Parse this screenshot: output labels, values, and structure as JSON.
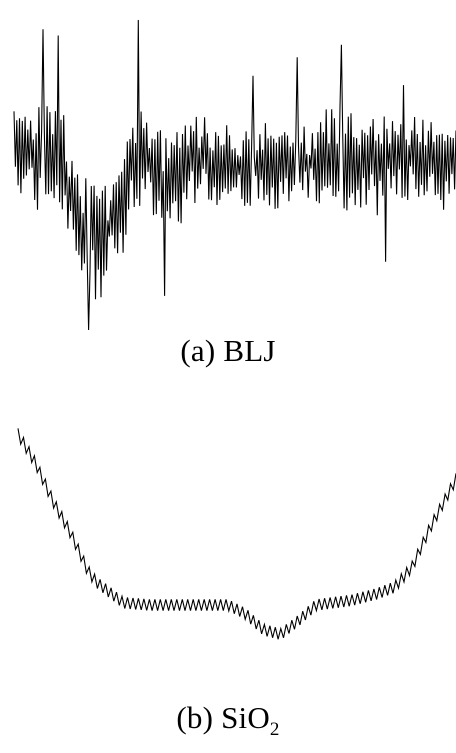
{
  "colors": {
    "background": "#ffffff",
    "trace": "#000000"
  },
  "chart_data": [
    {
      "type": "line",
      "caption_prefix": "(a)",
      "caption_label": "BLJ",
      "xlabel": "",
      "ylabel": "",
      "axes_visible": false,
      "grid": false,
      "x_range": [
        0,
        100
      ],
      "ylim": [
        0,
        100
      ],
      "series": [
        {
          "envelope": [
            {
              "x": 0,
              "y": 60
            },
            {
              "x": 4,
              "y": 55
            },
            {
              "x": 8,
              "y": 58
            },
            {
              "x": 12,
              "y": 48
            },
            {
              "x": 16,
              "y": 30
            },
            {
              "x": 20,
              "y": 30
            },
            {
              "x": 24,
              "y": 43
            },
            {
              "x": 28,
              "y": 56
            },
            {
              "x": 32,
              "y": 52
            },
            {
              "x": 36,
              "y": 46
            },
            {
              "x": 40,
              "y": 55
            },
            {
              "x": 50,
              "y": 53
            },
            {
              "x": 60,
              "y": 53
            },
            {
              "x": 70,
              "y": 55
            },
            {
              "x": 80,
              "y": 54
            },
            {
              "x": 90,
              "y": 55
            },
            {
              "x": 100,
              "y": 54
            }
          ],
          "amplitude": [
            {
              "x": 0,
              "y": 14
            },
            {
              "x": 10,
              "y": 17
            },
            {
              "x": 20,
              "y": 18
            },
            {
              "x": 30,
              "y": 16
            },
            {
              "x": 40,
              "y": 13
            },
            {
              "x": 60,
              "y": 12
            },
            {
              "x": 80,
              "y": 15
            },
            {
              "x": 100,
              "y": 12
            }
          ],
          "points_count": 320,
          "spikes": [
            {
              "x": 6.5,
              "y": 97
            },
            {
              "x": 10,
              "y": 95
            },
            {
              "x": 17,
              "y": 0
            },
            {
              "x": 28,
              "y": 100
            },
            {
              "x": 34,
              "y": 11
            },
            {
              "x": 54,
              "y": 82
            },
            {
              "x": 64,
              "y": 88
            },
            {
              "x": 74,
              "y": 92
            },
            {
              "x": 84,
              "y": 22
            },
            {
              "x": 88,
              "y": 79
            }
          ]
        }
      ]
    },
    {
      "type": "line",
      "caption_prefix": "(b)",
      "caption_label": "SiO",
      "caption_subscript": "2",
      "xlabel": "",
      "ylabel": "",
      "axes_visible": false,
      "grid": false,
      "x_range": [
        0,
        100
      ],
      "ylim": [
        0,
        100
      ],
      "series": [
        {
          "envelope": [
            {
              "x": 0,
              "y": 96
            },
            {
              "x": 4,
              "y": 83
            },
            {
              "x": 8,
              "y": 66
            },
            {
              "x": 12,
              "y": 52
            },
            {
              "x": 16,
              "y": 35
            },
            {
              "x": 18,
              "y": 30
            },
            {
              "x": 24,
              "y": 21
            },
            {
              "x": 30,
              "y": 20
            },
            {
              "x": 40,
              "y": 20
            },
            {
              "x": 48,
              "y": 20
            },
            {
              "x": 52,
              "y": 16
            },
            {
              "x": 56,
              "y": 9
            },
            {
              "x": 60,
              "y": 7
            },
            {
              "x": 64,
              "y": 13
            },
            {
              "x": 68,
              "y": 20
            },
            {
              "x": 76,
              "y": 22
            },
            {
              "x": 82,
              "y": 25
            },
            {
              "x": 86,
              "y": 28
            },
            {
              "x": 90,
              "y": 37
            },
            {
              "x": 94,
              "y": 54
            },
            {
              "x": 100,
              "y": 76
            }
          ],
          "amplitude": 5,
          "period": 1.25
        }
      ]
    }
  ]
}
